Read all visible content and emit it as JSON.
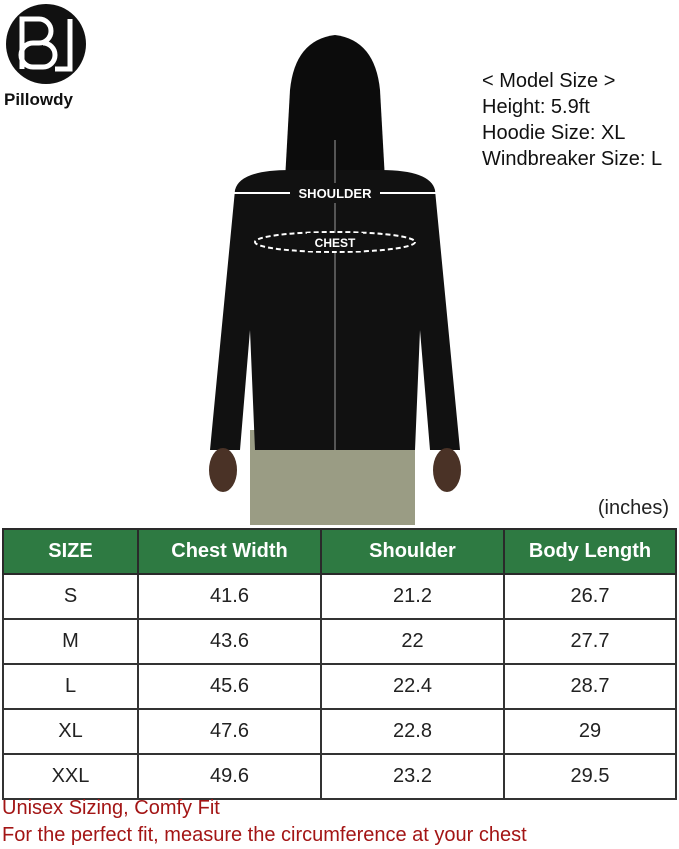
{
  "brand": {
    "name": "Pillowdy"
  },
  "model_info": {
    "title": "< Model Size >",
    "height": "Height: 5.9ft",
    "hoodie": "Hoodie Size: XL",
    "windbreaker": "Windbreaker Size: L"
  },
  "photo": {
    "shoulder_label": "SHOULDER",
    "chest_label": "CHEST"
  },
  "units": "(inches)",
  "table": {
    "headers": [
      "SIZE",
      "Chest Width",
      "Shoulder",
      "Body Length"
    ],
    "rows": [
      [
        "S",
        "41.6",
        "21.2",
        "26.7"
      ],
      [
        "M",
        "43.6",
        "22",
        "27.7"
      ],
      [
        "L",
        "45.6",
        "22.4",
        "28.7"
      ],
      [
        "XL",
        "47.6",
        "22.8",
        "29"
      ],
      [
        "XXL",
        "49.6",
        "23.2",
        "29.5"
      ]
    ]
  },
  "notes": [
    "Unisex Sizing, Comfy Fit",
    "For the perfect fit, measure the circumference at your chest"
  ],
  "colors": {
    "header": "#2e7a42",
    "note": "#a31515"
  }
}
